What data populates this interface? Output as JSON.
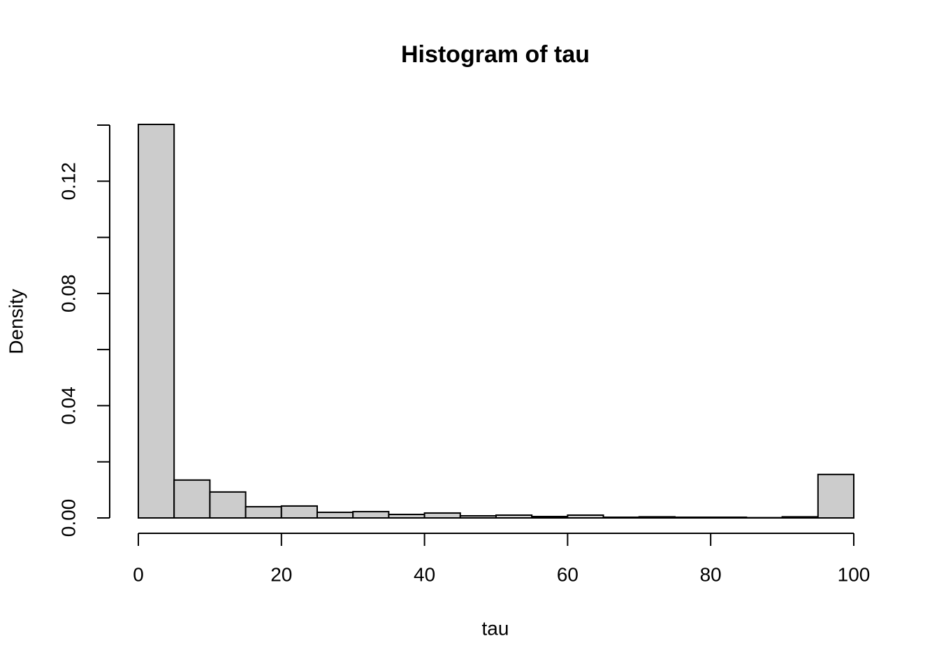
{
  "chart_data": {
    "type": "histogram",
    "title": "Histogram of tau",
    "x_label": "tau",
    "y_label": "Density",
    "bins": [
      0,
      5,
      10,
      15,
      20,
      25,
      30,
      35,
      40,
      45,
      50,
      55,
      60,
      65,
      70,
      75,
      80,
      85,
      90,
      95,
      100
    ],
    "values": [
      0.14025,
      0.0135,
      0.00925,
      0.004,
      0.00425,
      0.002,
      0.00225,
      0.00125,
      0.00175,
      0.00075,
      0.001,
      0.0005,
      0.001,
      0.00025,
      0.0004,
      0.00025,
      0.00025,
      0.0001,
      0.0004,
      0.0155
    ],
    "color": "#cccccc",
    "xlim": [
      0,
      100
    ],
    "xticks": [
      0,
      20,
      40,
      60,
      80,
      100
    ],
    "ylim": [
      0,
      0.14
    ],
    "yticks": [
      {
        "value": 0,
        "label": "0.00"
      },
      {
        "value": 0.04,
        "label": "0.04"
      },
      {
        "value": 0.08,
        "label": "0.08"
      },
      {
        "value": 0.12,
        "label": "0.12"
      }
    ],
    "yminorticks": [
      0.02,
      0.06,
      0.1,
      0.14
    ],
    "grid": false
  }
}
